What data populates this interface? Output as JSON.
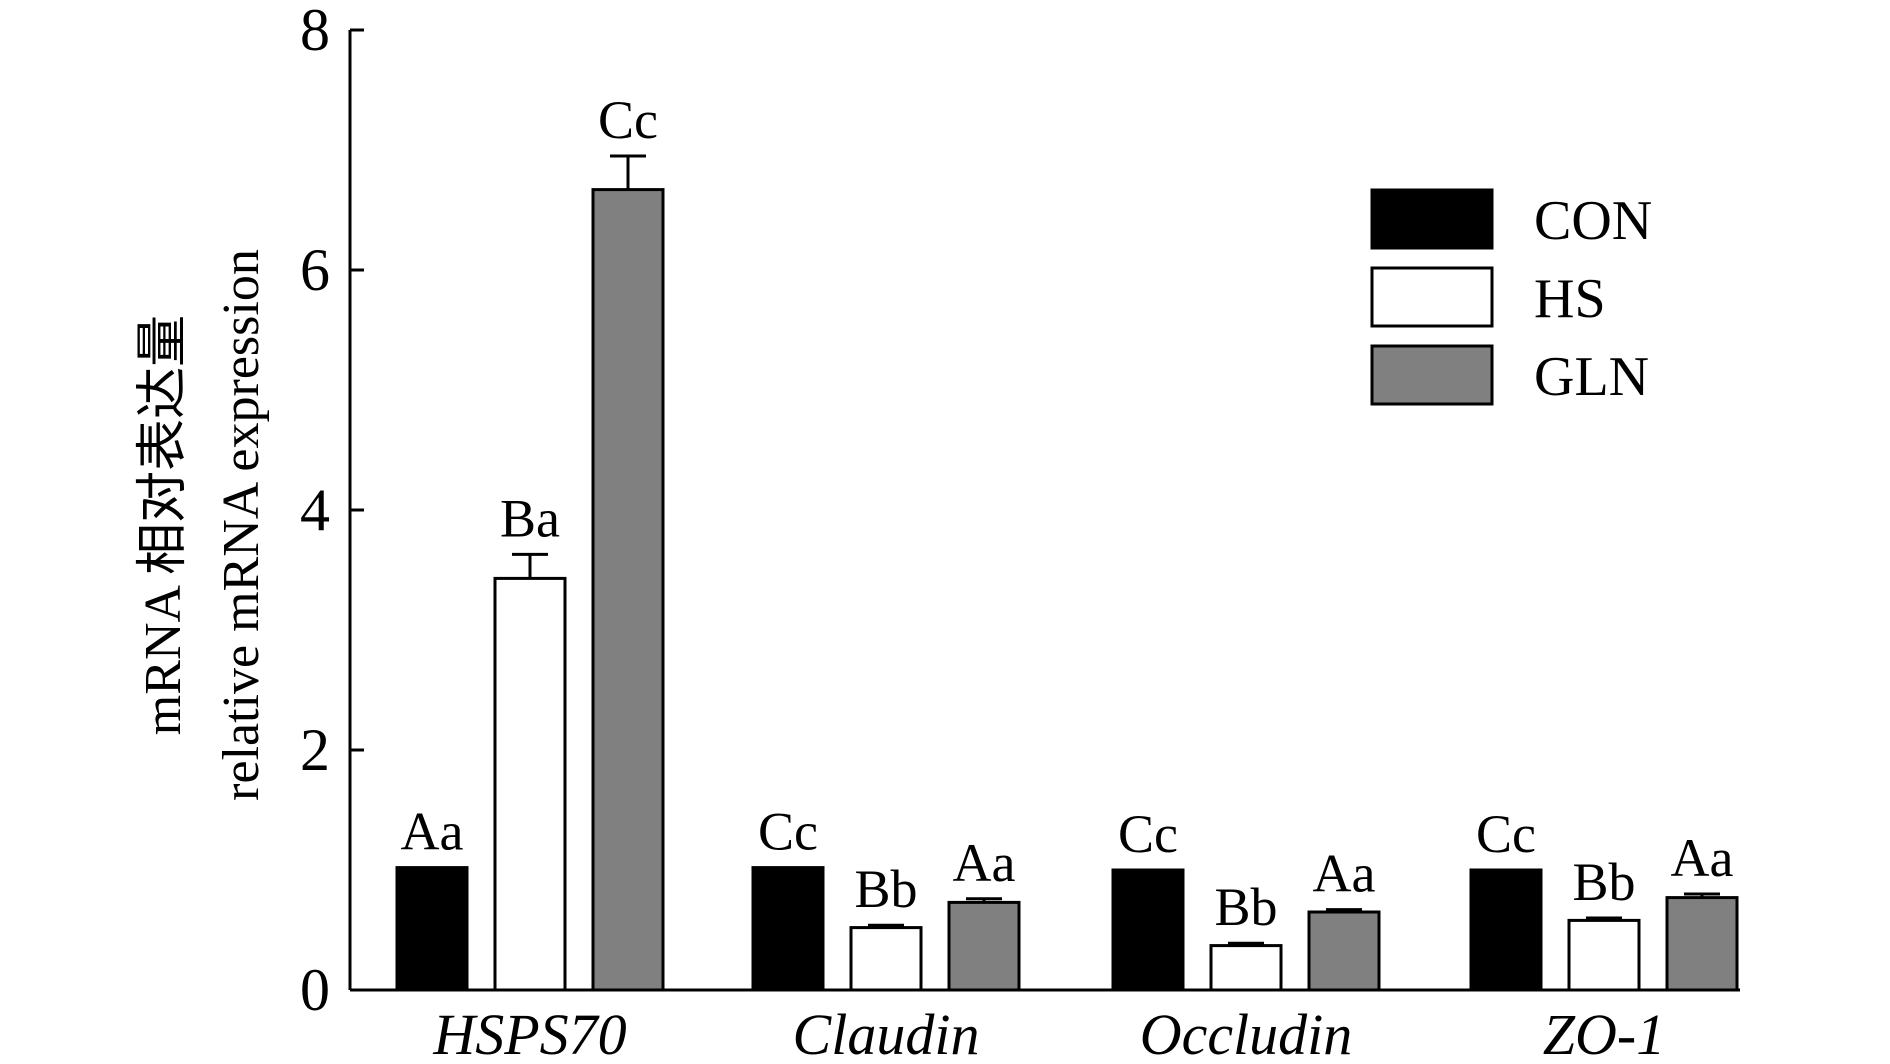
{
  "chart_data": {
    "type": "bar",
    "title": "",
    "xlabel": "",
    "ylabel_lines": [
      "mRNA 相对表达量",
      "relative mRNA expression"
    ],
    "ylim": [
      0,
      8
    ],
    "yticks": [
      "0",
      "2",
      "4",
      "6",
      "8"
    ],
    "categories": [
      "HSPS70",
      "Claudin",
      "Occludin",
      "ZO-1"
    ],
    "legend_position": "top-right",
    "grid": false,
    "series": [
      {
        "name": "CON",
        "color": "#000000",
        "values": [
          1.02,
          1.02,
          1.0,
          1.0
        ],
        "errors": [
          0,
          0,
          0,
          0
        ],
        "labels": [
          "Aa",
          "Cc",
          "Cc",
          "Cc"
        ]
      },
      {
        "name": "HS",
        "color": "#ffffff",
        "values": [
          3.43,
          0.52,
          0.37,
          0.58
        ],
        "errors": [
          0.2,
          0.02,
          0.02,
          0.02
        ],
        "labels": [
          "Ba",
          "Bb",
          "Bb",
          "Bb"
        ]
      },
      {
        "name": "GLN",
        "color": "#808080",
        "values": [
          6.67,
          0.73,
          0.65,
          0.77
        ],
        "errors": [
          0.28,
          0.03,
          0.02,
          0.03
        ],
        "labels": [
          "Cc",
          "Aa",
          "Aa",
          "Aa"
        ]
      }
    ]
  }
}
